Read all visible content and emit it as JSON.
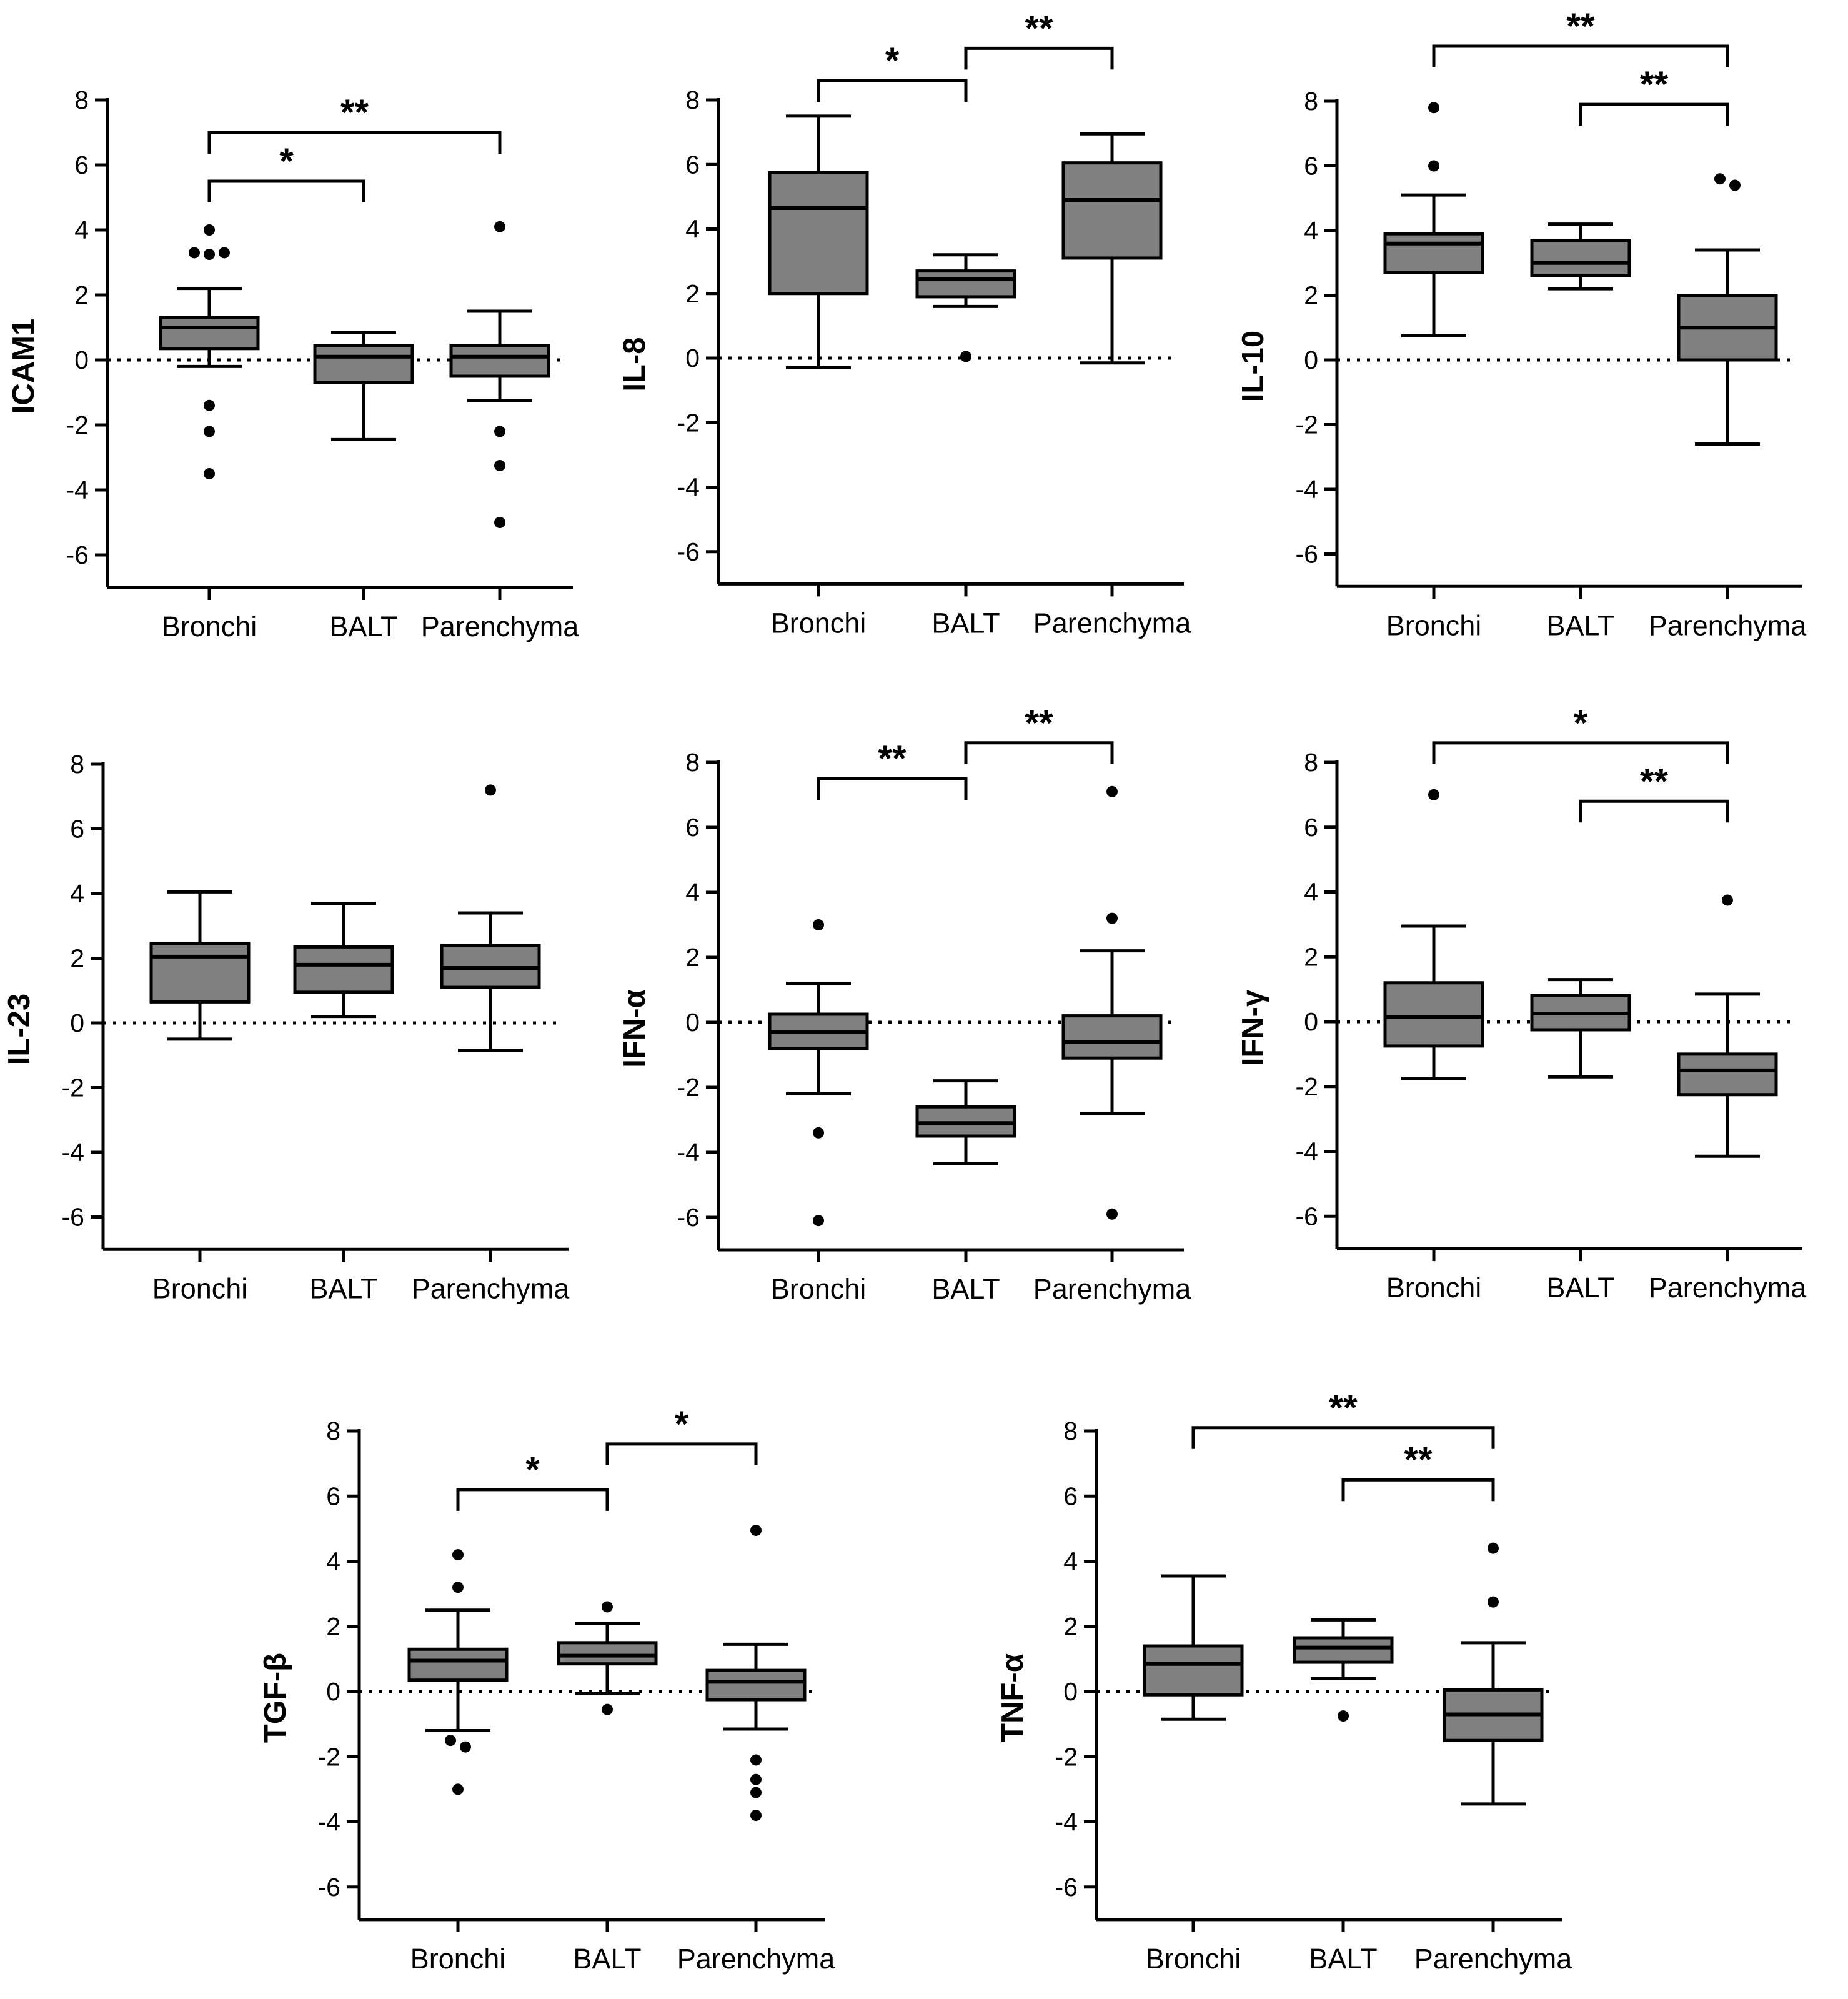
{
  "chart_data": [
    {
      "type": "box",
      "ylabel": "ICAM1",
      "categories": [
        "Bronchi",
        "BALT",
        "Parenchyma"
      ],
      "ylim": [
        -7,
        8
      ],
      "yticks": [
        8,
        6,
        4,
        2,
        0,
        -2,
        -4,
        -6
      ],
      "reference_line": 0,
      "boxes": [
        {
          "q1": 0.35,
          "median": 1.0,
          "q3": 1.3,
          "whisker_low": -0.2,
          "whisker_high": 2.2,
          "outliers": [
            4.0,
            3.3,
            3.25,
            3.3,
            -1.4,
            -2.2,
            -3.5
          ]
        },
        {
          "q1": -0.7,
          "median": 0.1,
          "q3": 0.45,
          "whisker_low": -2.45,
          "whisker_high": 0.85,
          "outliers": []
        },
        {
          "q1": -0.5,
          "median": 0.1,
          "q3": 0.45,
          "whisker_low": -1.25,
          "whisker_high": 1.5,
          "outliers": [
            4.1,
            -2.2,
            -3.25,
            -5.0
          ]
        }
      ],
      "brackets": [
        {
          "from": "Bronchi",
          "to": "BALT",
          "y": 5.5,
          "label": "*"
        },
        {
          "from": "Bronchi",
          "to": "Parenchyma",
          "y": 7.0,
          "label": "**"
        }
      ]
    },
    {
      "type": "box",
      "ylabel": "IL-8",
      "categories": [
        "Bronchi",
        "BALT",
        "Parenchyma"
      ],
      "ylim": [
        -7,
        8
      ],
      "yticks": [
        8,
        6,
        4,
        2,
        0,
        -2,
        -4,
        -6
      ],
      "reference_line": 0,
      "boxes": [
        {
          "q1": 2.0,
          "median": 4.65,
          "q3": 5.75,
          "whisker_low": -0.3,
          "whisker_high": 7.5,
          "outliers": []
        },
        {
          "q1": 1.9,
          "median": 2.45,
          "q3": 2.7,
          "whisker_low": 1.6,
          "whisker_high": 3.2,
          "outliers": [
            0.05
          ]
        },
        {
          "q1": 3.1,
          "median": 4.9,
          "q3": 6.05,
          "whisker_low": -0.15,
          "whisker_high": 6.95,
          "outliers": []
        }
      ],
      "brackets": [
        {
          "from": "Bronchi",
          "to": "BALT",
          "y": 8.6,
          "label": "*"
        },
        {
          "from": "BALT",
          "to": "Parenchyma",
          "y": 9.6,
          "label": "**"
        }
      ]
    },
    {
      "type": "box",
      "ylabel": "IL-10",
      "categories": [
        "Bronchi",
        "BALT",
        "Parenchyma"
      ],
      "ylim": [
        -7,
        8
      ],
      "yticks": [
        8,
        6,
        4,
        2,
        0,
        -2,
        -4,
        -6
      ],
      "reference_line": 0,
      "boxes": [
        {
          "q1": 2.7,
          "median": 3.6,
          "q3": 3.9,
          "whisker_low": 0.75,
          "whisker_high": 5.1,
          "outliers": [
            7.8,
            6.0
          ]
        },
        {
          "q1": 2.6,
          "median": 3.0,
          "q3": 3.7,
          "whisker_low": 2.2,
          "whisker_high": 4.2,
          "outliers": []
        },
        {
          "q1": 0.0,
          "median": 1.0,
          "q3": 2.0,
          "whisker_low": -2.6,
          "whisker_high": 3.4,
          "outliers": [
            5.6,
            5.4
          ]
        }
      ],
      "brackets": [
        {
          "from": "BALT",
          "to": "Parenchyma",
          "y": 7.9,
          "label": "**"
        },
        {
          "from": "Bronchi",
          "to": "Parenchyma",
          "y": 9.7,
          "label": "**"
        }
      ]
    },
    {
      "type": "box",
      "ylabel": "IL-23",
      "categories": [
        "Bronchi",
        "BALT",
        "Parenchyma"
      ],
      "ylim": [
        -7,
        8
      ],
      "yticks": [
        8,
        6,
        4,
        2,
        0,
        -2,
        -4,
        -6
      ],
      "reference_line": 0,
      "boxes": [
        {
          "q1": 0.65,
          "median": 2.05,
          "q3": 2.45,
          "whisker_low": -0.5,
          "whisker_high": 4.05,
          "outliers": []
        },
        {
          "q1": 0.95,
          "median": 1.8,
          "q3": 2.35,
          "whisker_low": 0.2,
          "whisker_high": 3.7,
          "outliers": []
        },
        {
          "q1": 1.1,
          "median": 1.7,
          "q3": 2.4,
          "whisker_low": -0.85,
          "whisker_high": 3.4,
          "outliers": [
            7.2
          ]
        }
      ],
      "brackets": []
    },
    {
      "type": "box",
      "ylabel": "IFN-α",
      "categories": [
        "Bronchi",
        "BALT",
        "Parenchyma"
      ],
      "ylim": [
        -7,
        8
      ],
      "yticks": [
        8,
        6,
        4,
        2,
        0,
        -2,
        -4,
        -6
      ],
      "reference_line": 0,
      "boxes": [
        {
          "q1": -0.8,
          "median": -0.3,
          "q3": 0.25,
          "whisker_low": -2.2,
          "whisker_high": 1.2,
          "outliers": [
            3.0,
            -3.4,
            -6.1
          ]
        },
        {
          "q1": -3.5,
          "median": -3.1,
          "q3": -2.6,
          "whisker_low": -4.35,
          "whisker_high": -1.8,
          "outliers": []
        },
        {
          "q1": -1.1,
          "median": -0.6,
          "q3": 0.2,
          "whisker_low": -2.8,
          "whisker_high": 2.2,
          "outliers": [
            7.1,
            3.2,
            -5.9
          ]
        }
      ],
      "brackets": [
        {
          "from": "Bronchi",
          "to": "BALT",
          "y": 7.5,
          "label": "**"
        },
        {
          "from": "BALT",
          "to": "Parenchyma",
          "y": 8.6,
          "label": "**"
        }
      ]
    },
    {
      "type": "box",
      "ylabel": "IFN-γ",
      "categories": [
        "Bronchi",
        "BALT",
        "Parenchyma"
      ],
      "ylim": [
        -7,
        8
      ],
      "yticks": [
        8,
        6,
        4,
        2,
        0,
        -2,
        -4,
        -6
      ],
      "reference_line": 0,
      "boxes": [
        {
          "q1": -0.75,
          "median": 0.15,
          "q3": 1.2,
          "whisker_low": -1.75,
          "whisker_high": 2.95,
          "outliers": [
            7.0
          ]
        },
        {
          "q1": -0.25,
          "median": 0.25,
          "q3": 0.8,
          "whisker_low": -1.7,
          "whisker_high": 1.3,
          "outliers": []
        },
        {
          "q1": -2.25,
          "median": -1.5,
          "q3": -1.0,
          "whisker_low": -4.15,
          "whisker_high": 0.85,
          "outliers": [
            3.75
          ]
        }
      ],
      "brackets": [
        {
          "from": "BALT",
          "to": "Parenchyma",
          "y": 6.8,
          "label": "**"
        },
        {
          "from": "Bronchi",
          "to": "Parenchyma",
          "y": 8.6,
          "label": "*"
        }
      ]
    },
    {
      "type": "box",
      "ylabel": "TGF-β",
      "categories": [
        "Bronchi",
        "BALT",
        "Parenchyma"
      ],
      "ylim": [
        -7,
        8
      ],
      "yticks": [
        8,
        6,
        4,
        2,
        0,
        -2,
        -4,
        -6
      ],
      "reference_line": 0,
      "boxes": [
        {
          "q1": 0.35,
          "median": 0.95,
          "q3": 1.3,
          "whisker_low": -1.2,
          "whisker_high": 2.5,
          "outliers": [
            4.2,
            3.2,
            -1.5,
            -1.7,
            -3.0
          ]
        },
        {
          "q1": 0.85,
          "median": 1.1,
          "q3": 1.5,
          "whisker_low": -0.05,
          "whisker_high": 2.1,
          "outliers": [
            2.6,
            -0.55
          ]
        },
        {
          "q1": -0.25,
          "median": 0.3,
          "q3": 0.65,
          "whisker_low": -1.15,
          "whisker_high": 1.45,
          "outliers": [
            4.95,
            -2.1,
            -2.7,
            -3.1,
            -3.8
          ]
        }
      ],
      "brackets": [
        {
          "from": "Bronchi",
          "to": "BALT",
          "y": 6.2,
          "label": "*"
        },
        {
          "from": "BALT",
          "to": "Parenchyma",
          "y": 7.6,
          "label": "*"
        }
      ]
    },
    {
      "type": "box",
      "ylabel": "TNF-α",
      "categories": [
        "Bronchi",
        "BALT",
        "Parenchyma"
      ],
      "ylim": [
        -7,
        8
      ],
      "yticks": [
        8,
        6,
        4,
        2,
        0,
        -2,
        -4,
        -6
      ],
      "reference_line": 0,
      "boxes": [
        {
          "q1": -0.1,
          "median": 0.85,
          "q3": 1.4,
          "whisker_low": -0.85,
          "whisker_high": 3.55,
          "outliers": []
        },
        {
          "q1": 0.9,
          "median": 1.35,
          "q3": 1.65,
          "whisker_low": 0.4,
          "whisker_high": 2.2,
          "outliers": [
            -0.75
          ]
        },
        {
          "q1": -1.5,
          "median": -0.7,
          "q3": 0.05,
          "whisker_low": -3.45,
          "whisker_high": 1.5,
          "outliers": [
            4.4,
            2.75
          ]
        }
      ],
      "brackets": [
        {
          "from": "BALT",
          "to": "Parenchyma",
          "y": 6.5,
          "label": "**"
        },
        {
          "from": "Bronchi",
          "to": "Parenchyma",
          "y": 8.1,
          "label": "**"
        }
      ]
    }
  ]
}
